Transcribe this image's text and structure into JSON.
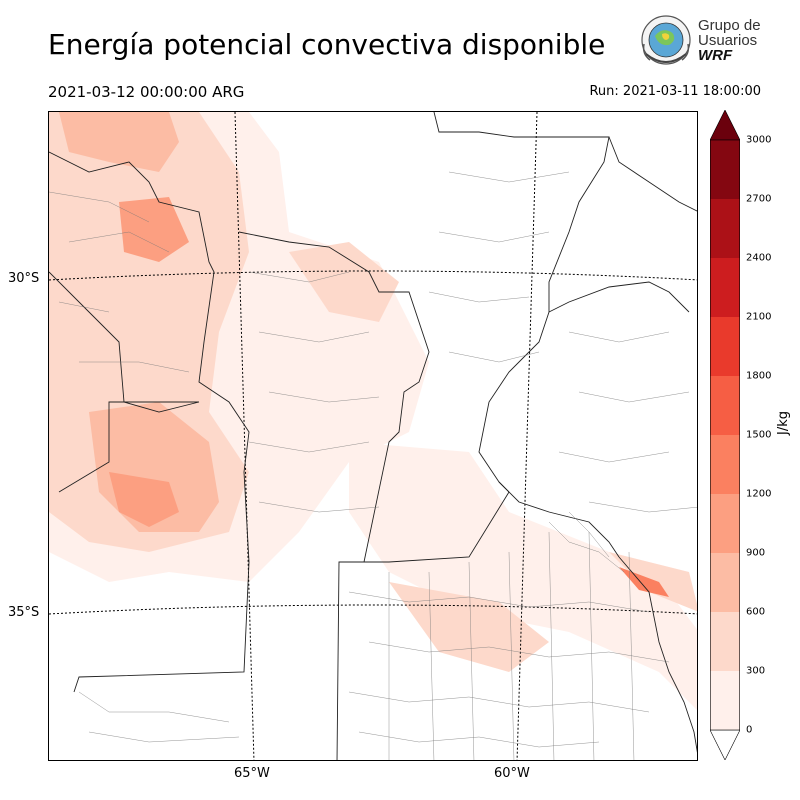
{
  "title": "Energía potencial convectiva disponible",
  "valid_time": "2021-03-12 00:00:00 ARG",
  "run_time": "Run: 2021-03-11 18:00:00",
  "logo": {
    "line1": "Grupo de",
    "line2": "Usuarios",
    "line3": "WRF"
  },
  "map": {
    "lat_labels": [
      "30°S",
      "35°S"
    ],
    "lon_labels": [
      "65°W",
      "60°W"
    ]
  },
  "colorbar": {
    "unit": "J/kg",
    "ticks": [
      "0",
      "300",
      "600",
      "900",
      "1200",
      "1500",
      "1800",
      "2100",
      "2400",
      "2700",
      "3000"
    ],
    "colors": [
      "#fff0eb",
      "#fdd9cb",
      "#fcbca4",
      "#fc9f81",
      "#fb8060",
      "#f65e44",
      "#e93a2c",
      "#cd1d1f",
      "#ac1117",
      "#840711"
    ],
    "extend_max_color": "#6b010d"
  }
}
